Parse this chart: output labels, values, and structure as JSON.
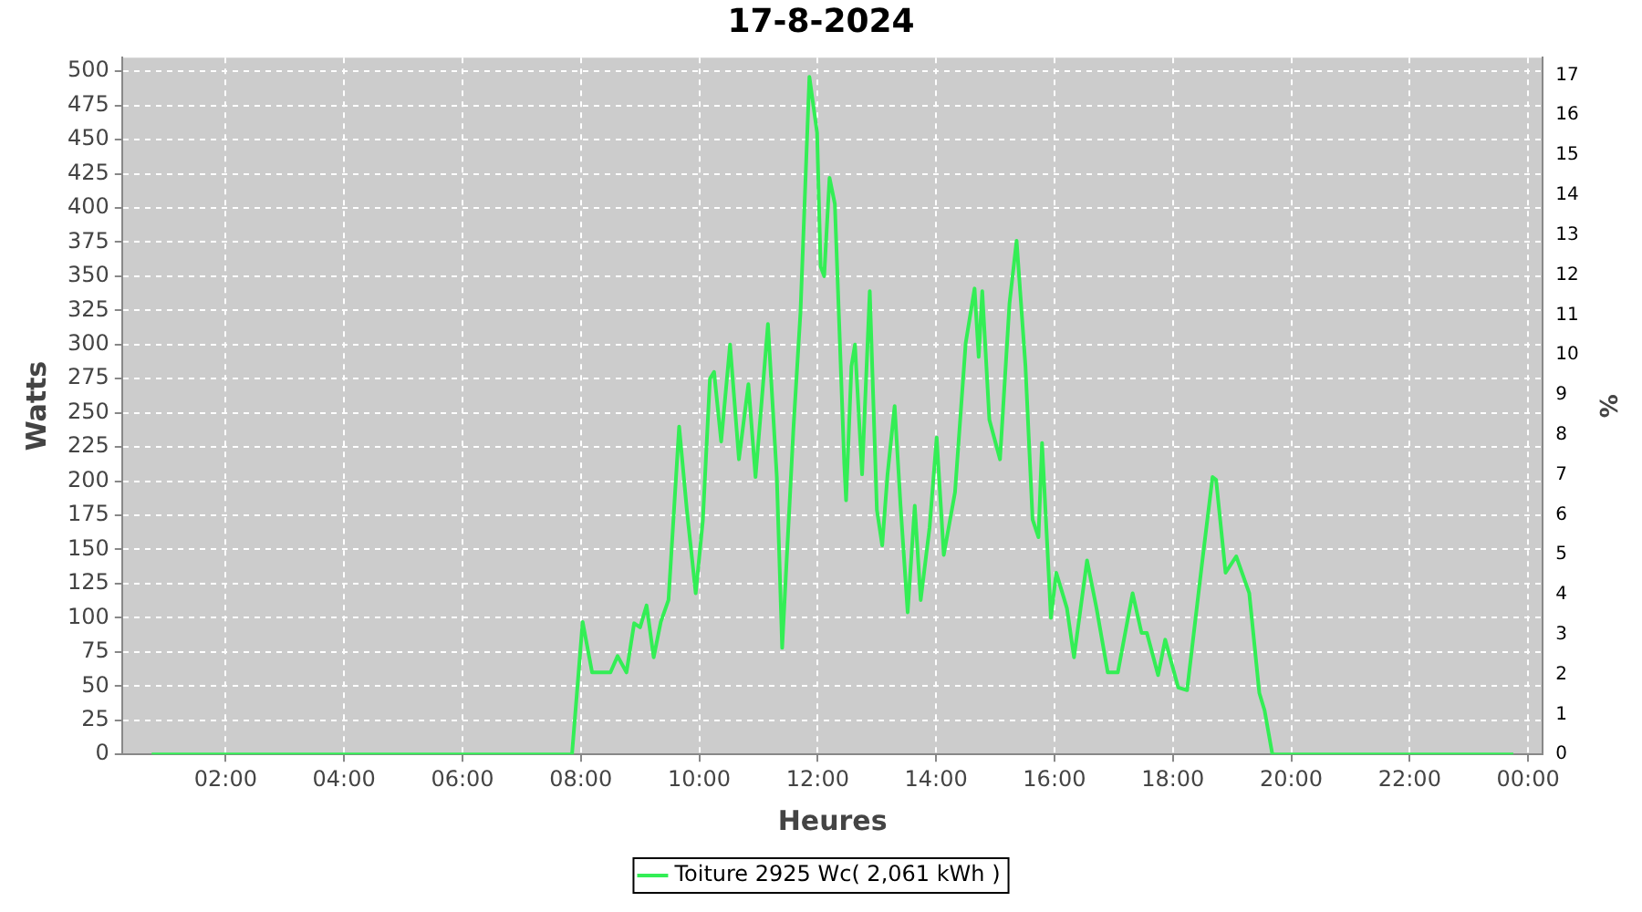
{
  "chart_data": {
    "type": "line",
    "title": "17-8-2024",
    "xlabel": "Heures",
    "ylabel": "Watts",
    "y2label": "%",
    "xlim": [
      0.25,
      24.25
    ],
    "xticks": [
      {
        "value": 2,
        "label": "02:00"
      },
      {
        "value": 4,
        "label": "04:00"
      },
      {
        "value": 6,
        "label": "06:00"
      },
      {
        "value": 8,
        "label": "08:00"
      },
      {
        "value": 10,
        "label": "10:00"
      },
      {
        "value": 12,
        "label": "12:00"
      },
      {
        "value": 14,
        "label": "14:00"
      },
      {
        "value": 16,
        "label": "16:00"
      },
      {
        "value": 18,
        "label": "18:00"
      },
      {
        "value": 20,
        "label": "20:00"
      },
      {
        "value": 22,
        "label": "22:00"
      },
      {
        "value": 24,
        "label": "00:00"
      }
    ],
    "ylim": [
      0,
      510
    ],
    "yticks": [
      0,
      25,
      50,
      75,
      100,
      125,
      150,
      175,
      200,
      225,
      250,
      275,
      300,
      325,
      350,
      375,
      400,
      425,
      450,
      475,
      500
    ],
    "y2lim": [
      0,
      17.44
    ],
    "y2ticks": [
      0,
      1,
      2,
      3,
      4,
      5,
      6,
      7,
      8,
      9,
      10,
      11,
      12,
      13,
      14,
      15,
      16,
      17
    ],
    "grid": true,
    "legend": "bottom",
    "marker": "none",
    "line_style": "solid",
    "series": [
      {
        "name": "Toiture 2925 Wc( 2,061 kWh )",
        "color": "#33ee55",
        "x": [
          0.75,
          7.85,
          8.03,
          8.19,
          8.5,
          8.62,
          8.77,
          8.9,
          9.0,
          9.11,
          9.23,
          9.35,
          9.48,
          9.66,
          9.79,
          9.94,
          10.06,
          10.18,
          10.25,
          10.37,
          10.52,
          10.67,
          10.83,
          10.95,
          11.16,
          11.31,
          11.4,
          11.59,
          11.71,
          11.86,
          11.99,
          12.05,
          12.11,
          12.2,
          12.29,
          12.45,
          12.48,
          12.57,
          12.63,
          12.75,
          12.88,
          13.0,
          13.09,
          13.18,
          13.3,
          13.4,
          13.52,
          13.64,
          13.74,
          13.89,
          14.01,
          14.13,
          14.32,
          14.5,
          14.65,
          14.72,
          14.78,
          14.9,
          15.08,
          15.24,
          15.36,
          15.51,
          15.63,
          15.73,
          15.79,
          15.94,
          16.03,
          16.12,
          16.21,
          16.33,
          16.55,
          16.71,
          16.9,
          17.07,
          17.32,
          17.47,
          17.56,
          17.75,
          17.87,
          18.09,
          18.24,
          18.49,
          18.67,
          18.73,
          18.89,
          19.07,
          19.29,
          19.46,
          19.55,
          19.68,
          23.75
        ],
        "values": [
          0,
          0,
          97,
          60,
          60,
          72,
          60,
          96,
          93,
          109,
          71,
          97,
          113,
          240,
          179,
          118,
          171,
          275,
          280,
          229,
          300,
          216,
          271,
          203,
          315,
          203,
          78,
          238,
          324,
          496,
          455,
          357,
          350,
          422,
          403,
          212,
          186,
          284,
          300,
          205,
          339,
          179,
          153,
          205,
          255,
          182,
          104,
          182,
          113,
          166,
          232,
          146,
          192,
          301,
          341,
          291,
          339,
          245,
          216,
          330,
          376,
          284,
          172,
          159,
          228,
          100,
          133,
          120,
          107,
          71,
          142,
          107,
          60,
          60,
          118,
          89,
          89,
          58,
          84,
          49,
          47,
          139,
          203,
          201,
          133,
          145,
          118,
          45,
          32,
          0,
          0
        ]
      }
    ]
  }
}
